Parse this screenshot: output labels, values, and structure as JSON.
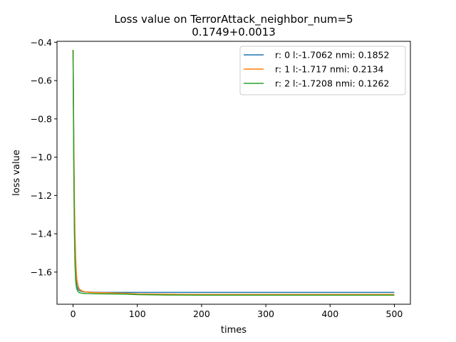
{
  "chart_data": {
    "type": "line",
    "title_line1": "Loss value on TerrorAttack_neighbor_num=5",
    "title_line2": "0.1749+0.0013",
    "xlabel": "times",
    "ylabel": "loss value",
    "xlim": [
      -25,
      525
    ],
    "ylim": [
      -1.768,
      -0.395
    ],
    "xticks": [
      0,
      100,
      200,
      300,
      400,
      500
    ],
    "yticks": [
      -0.4,
      -0.6,
      -0.8,
      -1.0,
      -1.2,
      -1.4,
      -1.6
    ],
    "ytick_labels": [
      "−0.4",
      "−0.6",
      "−0.8",
      "−1.0",
      "−1.2",
      "−1.4",
      "−1.6"
    ],
    "grid": false,
    "legend_position": "upper right",
    "series": [
      {
        "name": "r: 0 l:-1.7062 nmi: 0.1852",
        "color": "#1f77b4",
        "x": [
          0,
          1,
          2,
          3,
          4,
          5,
          6,
          8,
          10,
          15,
          20,
          30,
          50,
          100,
          200,
          300,
          400,
          500
        ],
        "y": [
          -0.44,
          -0.9,
          -1.3,
          -1.5,
          -1.6,
          -1.65,
          -1.675,
          -1.69,
          -1.697,
          -1.702,
          -1.704,
          -1.705,
          -1.706,
          -1.7062,
          -1.7062,
          -1.7062,
          -1.7062,
          -1.7062
        ]
      },
      {
        "name": "r: 1 l:-1.717 nmi: 0.2134",
        "color": "#ff7f0e",
        "x": [
          0,
          1,
          2,
          3,
          4,
          5,
          6,
          8,
          10,
          15,
          20,
          30,
          50,
          80,
          100,
          150,
          200,
          300,
          400,
          500
        ],
        "y": [
          -0.44,
          -0.85,
          -1.2,
          -1.4,
          -1.52,
          -1.6,
          -1.64,
          -1.675,
          -1.69,
          -1.7,
          -1.704,
          -1.706,
          -1.708,
          -1.711,
          -1.714,
          -1.716,
          -1.717,
          -1.717,
          -1.717,
          -1.717
        ]
      },
      {
        "name": "r: 2 l:-1.7208 nmi: 0.1262",
        "color": "#2ca02c",
        "x": [
          0,
          1,
          2,
          3,
          4,
          5,
          6,
          8,
          10,
          15,
          20,
          30,
          50,
          80,
          100,
          150,
          200,
          300,
          400,
          500
        ],
        "y": [
          -0.44,
          -1.0,
          -1.38,
          -1.56,
          -1.64,
          -1.675,
          -1.69,
          -1.703,
          -1.708,
          -1.711,
          -1.712,
          -1.713,
          -1.714,
          -1.715,
          -1.718,
          -1.72,
          -1.7208,
          -1.7208,
          -1.7208,
          -1.7208
        ]
      }
    ]
  }
}
